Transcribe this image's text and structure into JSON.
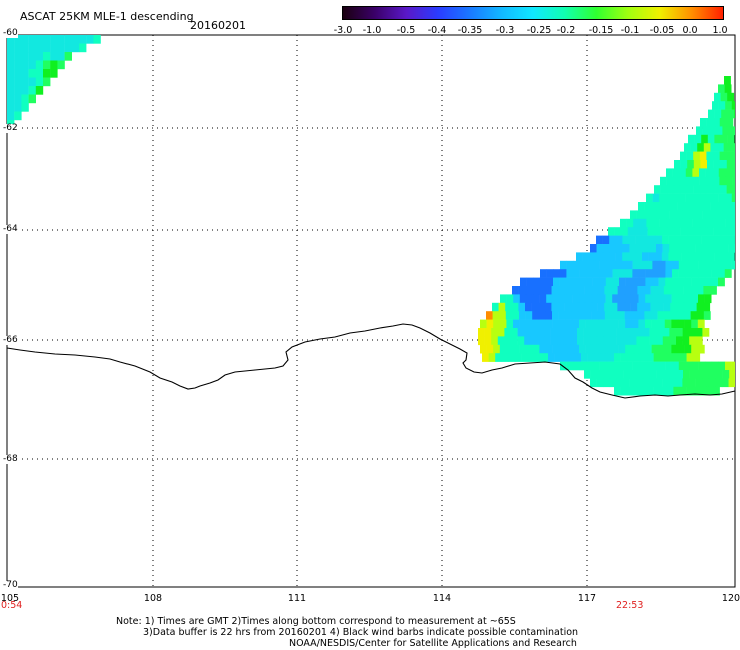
{
  "title": "ASCAT 25KM MLE-1 descending",
  "date": "20160201",
  "colorbar": {
    "ticks": [
      "-3.0",
      "-1.0",
      "-0.5",
      "-0.4",
      "-0.35",
      "-0.3",
      "-0.25",
      "-0.2",
      "-0.15",
      "-0.1",
      "-0.05",
      "0.0",
      "1.0"
    ],
    "colors": [
      "#1a0010",
      "#3a0068",
      "#5a18c8",
      "#2a3cff",
      "#1a78ff",
      "#12b8ff",
      "#10e8ff",
      "#10ffb0",
      "#30ff30",
      "#a0ff10",
      "#f0f000",
      "#ff9000",
      "#ff2000"
    ]
  },
  "lat_labels": [
    "-60",
    "-62",
    "-64",
    "-66",
    "-68",
    "-70"
  ],
  "lon_labels": [
    "105",
    "108",
    "111",
    "114",
    "117",
    "120"
  ],
  "time_labels": {
    "left": "0:54",
    "right": "22:53"
  },
  "notes": {
    "line1": "Note: 1) Times are GMT 2)Times along bottom correspond to measurement at ~65S",
    "line2": "3)Data buffer is 22 hrs from 20160201 4) Black wind barbs indicate possible contamination",
    "line3": "NOAA/NESDIS/Center for Satellite Applications and Research"
  },
  "colors": {
    "coastline": "#000000",
    "grid": "#000000",
    "time_text": "#e0201f"
  }
}
